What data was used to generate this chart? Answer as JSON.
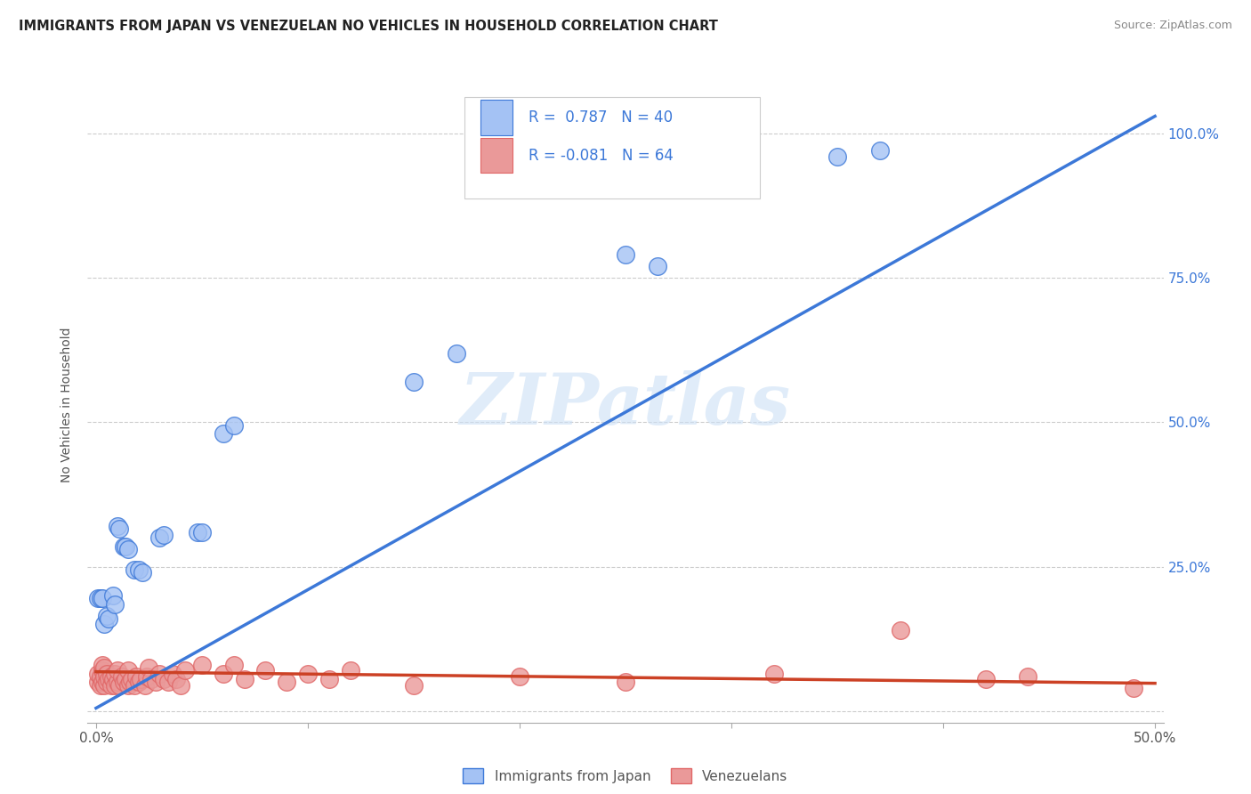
{
  "title": "IMMIGRANTS FROM JAPAN VS VENEZUELAN NO VEHICLES IN HOUSEHOLD CORRELATION CHART",
  "source": "Source: ZipAtlas.com",
  "ylabel": "No Vehicles in Household",
  "watermark": "ZIPatlas",
  "color_japan": "#a4c2f4",
  "color_venezuela": "#ea9999",
  "color_japan_line": "#3c78d8",
  "color_venezuela_line": "#cc4125",
  "japan_line_slope": 2.05,
  "japan_line_intercept": 0.005,
  "venezuela_line_slope": -0.04,
  "venezuela_line_intercept": 0.068,
  "japan_points": [
    [
      0.001,
      0.195
    ],
    [
      0.002,
      0.195
    ],
    [
      0.003,
      0.195
    ],
    [
      0.004,
      0.15
    ],
    [
      0.005,
      0.165
    ],
    [
      0.006,
      0.16
    ],
    [
      0.008,
      0.2
    ],
    [
      0.009,
      0.185
    ],
    [
      0.01,
      0.32
    ],
    [
      0.011,
      0.315
    ],
    [
      0.013,
      0.285
    ],
    [
      0.014,
      0.285
    ],
    [
      0.015,
      0.28
    ],
    [
      0.018,
      0.245
    ],
    [
      0.02,
      0.245
    ],
    [
      0.022,
      0.24
    ],
    [
      0.03,
      0.3
    ],
    [
      0.032,
      0.305
    ],
    [
      0.048,
      0.31
    ],
    [
      0.05,
      0.31
    ],
    [
      0.06,
      0.48
    ],
    [
      0.065,
      0.495
    ],
    [
      0.15,
      0.57
    ],
    [
      0.17,
      0.62
    ],
    [
      0.25,
      0.79
    ],
    [
      0.265,
      0.77
    ],
    [
      0.35,
      0.96
    ],
    [
      0.37,
      0.97
    ]
  ],
  "venezuela_points": [
    [
      0.001,
      0.05
    ],
    [
      0.001,
      0.065
    ],
    [
      0.002,
      0.045
    ],
    [
      0.002,
      0.06
    ],
    [
      0.003,
      0.05
    ],
    [
      0.003,
      0.07
    ],
    [
      0.003,
      0.08
    ],
    [
      0.004,
      0.045
    ],
    [
      0.004,
      0.06
    ],
    [
      0.004,
      0.075
    ],
    [
      0.005,
      0.05
    ],
    [
      0.005,
      0.065
    ],
    [
      0.006,
      0.055
    ],
    [
      0.007,
      0.045
    ],
    [
      0.007,
      0.06
    ],
    [
      0.008,
      0.055
    ],
    [
      0.009,
      0.045
    ],
    [
      0.009,
      0.065
    ],
    [
      0.01,
      0.05
    ],
    [
      0.01,
      0.07
    ],
    [
      0.011,
      0.045
    ],
    [
      0.012,
      0.06
    ],
    [
      0.013,
      0.05
    ],
    [
      0.014,
      0.055
    ],
    [
      0.015,
      0.045
    ],
    [
      0.015,
      0.07
    ],
    [
      0.016,
      0.05
    ],
    [
      0.017,
      0.055
    ],
    [
      0.018,
      0.045
    ],
    [
      0.019,
      0.06
    ],
    [
      0.02,
      0.05
    ],
    [
      0.021,
      0.055
    ],
    [
      0.023,
      0.045
    ],
    [
      0.024,
      0.06
    ],
    [
      0.025,
      0.075
    ],
    [
      0.026,
      0.055
    ],
    [
      0.028,
      0.05
    ],
    [
      0.03,
      0.065
    ],
    [
      0.032,
      0.055
    ],
    [
      0.034,
      0.05
    ],
    [
      0.036,
      0.065
    ],
    [
      0.038,
      0.055
    ],
    [
      0.04,
      0.045
    ],
    [
      0.042,
      0.07
    ],
    [
      0.05,
      0.08
    ],
    [
      0.06,
      0.065
    ],
    [
      0.065,
      0.08
    ],
    [
      0.07,
      0.055
    ],
    [
      0.08,
      0.07
    ],
    [
      0.09,
      0.05
    ],
    [
      0.1,
      0.065
    ],
    [
      0.11,
      0.055
    ],
    [
      0.12,
      0.07
    ],
    [
      0.15,
      0.045
    ],
    [
      0.2,
      0.06
    ],
    [
      0.25,
      0.05
    ],
    [
      0.32,
      0.065
    ],
    [
      0.38,
      0.14
    ],
    [
      0.42,
      0.055
    ],
    [
      0.44,
      0.06
    ],
    [
      0.49,
      0.04
    ]
  ]
}
